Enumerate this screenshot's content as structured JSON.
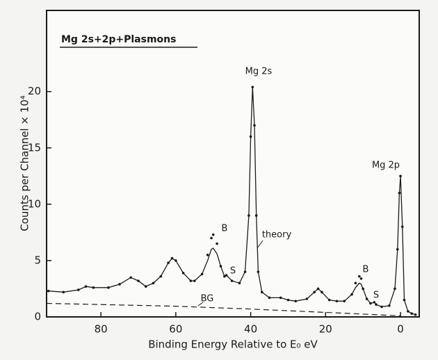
{
  "chart_data": {
    "type": "line",
    "title": "Mg  2s+2p+Plasmons",
    "x_label": "Binding Energy Relative to E₀ eV",
    "y_label": "Counts per Channel × 10⁴",
    "annotations": [
      "Mg 2s",
      "Mg 2p",
      "B",
      "S",
      "theory",
      "B",
      "S",
      "BG"
    ],
    "xlim": [
      94.5,
      -5
    ],
    "xticks": [
      80,
      60,
      40,
      20,
      0
    ],
    "ylim": [
      0,
      27.2
    ],
    "yticks": [
      0,
      5,
      10,
      15,
      20
    ],
    "x": [
      94,
      90,
      86,
      84,
      82,
      78,
      75,
      72,
      70,
      68,
      66,
      64,
      62,
      61,
      60,
      58,
      56,
      55,
      53,
      51.5,
      50.5,
      50,
      49,
      48,
      47,
      46.5,
      45,
      43,
      41.5,
      40.5,
      40,
      39.5,
      39,
      38.5,
      38,
      37,
      35,
      32,
      30,
      28,
      25,
      23,
      22,
      21,
      19,
      17,
      15,
      13,
      12,
      11,
      10.5,
      10,
      9,
      8,
      7,
      6.5,
      5,
      3,
      1.5,
      0.8,
      0.3,
      0,
      -0.5,
      -1,
      -2,
      -3,
      -4
    ],
    "series": [
      {
        "style": "dots",
        "color": "#1a1a1a",
        "values": [
          2.3,
          2.2,
          2.4,
          2.7,
          2.6,
          2.6,
          2.9,
          3.5,
          3.2,
          2.7,
          3.0,
          3.6,
          4.8,
          5.2,
          5.0,
          3.9,
          3.2,
          3.2,
          3.8,
          5.5,
          7.0,
          7.3,
          6.5,
          4.5,
          3.6,
          3.7,
          3.2,
          3.0,
          4.0,
          9.0,
          16.0,
          20.4,
          17.0,
          9.0,
          4.0,
          2.2,
          1.7,
          1.7,
          1.5,
          1.4,
          1.6,
          2.2,
          2.5,
          2.2,
          1.5,
          1.4,
          1.4,
          2.0,
          3.0,
          3.6,
          3.4,
          2.5,
          1.6,
          1.2,
          1.3,
          1.1,
          0.9,
          1.0,
          2.5,
          6.0,
          11.0,
          12.5,
          8.0,
          1.5,
          0.5,
          0.3,
          0.2
        ]
      },
      {
        "style": "solid",
        "color": "#1a1a1a",
        "values": [
          2.3,
          2.2,
          2.4,
          2.7,
          2.6,
          2.6,
          2.9,
          3.5,
          3.2,
          2.7,
          3.0,
          3.6,
          4.8,
          5.2,
          5.0,
          3.9,
          3.2,
          3.2,
          3.8,
          5.0,
          6.0,
          6.1,
          5.6,
          4.5,
          3.6,
          3.7,
          3.2,
          3.0,
          4.0,
          9.0,
          16.0,
          20.4,
          17.0,
          9.0,
          4.0,
          2.2,
          1.7,
          1.7,
          1.5,
          1.4,
          1.6,
          2.2,
          2.5,
          2.2,
          1.5,
          1.4,
          1.4,
          2.0,
          2.6,
          3.0,
          2.9,
          2.5,
          1.6,
          1.2,
          1.3,
          1.1,
          0.9,
          1.0,
          2.5,
          6.0,
          11.0,
          12.5,
          8.0,
          1.5,
          0.5,
          0.3,
          0.2
        ]
      },
      {
        "style": "dashed",
        "color": "#1a1a1a",
        "x": [
          94.5,
          60,
          40,
          20,
          0
        ],
        "values": [
          1.2,
          0.95,
          0.7,
          0.4,
          0.1
        ]
      }
    ]
  }
}
